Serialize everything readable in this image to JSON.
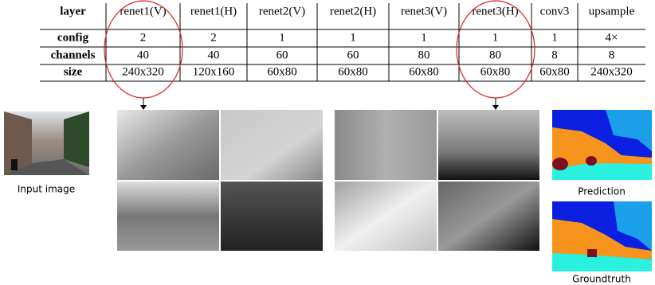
{
  "table": {
    "header": [
      "layer",
      "renet1(V)",
      "renet1(H)",
      "renet2(V)",
      "renet2(H)",
      "renet3(V)",
      "renet3(H)",
      "conv3",
      "upsample"
    ],
    "rows": [
      [
        "config",
        "2",
        "2",
        "1",
        "1",
        "1",
        "1",
        "1",
        "4×"
      ],
      [
        "channels",
        "40",
        "40",
        "60",
        "60",
        "80",
        "80",
        "8",
        "8"
      ],
      [
        "size",
        "240x320",
        "120x160",
        "60x80",
        "60x80",
        "60x80",
        "60x80",
        "60x80",
        "240x320"
      ]
    ]
  },
  "images": [
    {
      "caption": "Input image"
    },
    {
      "caption": "Prediction"
    },
    {
      "caption": "Groundtruth"
    }
  ]
}
